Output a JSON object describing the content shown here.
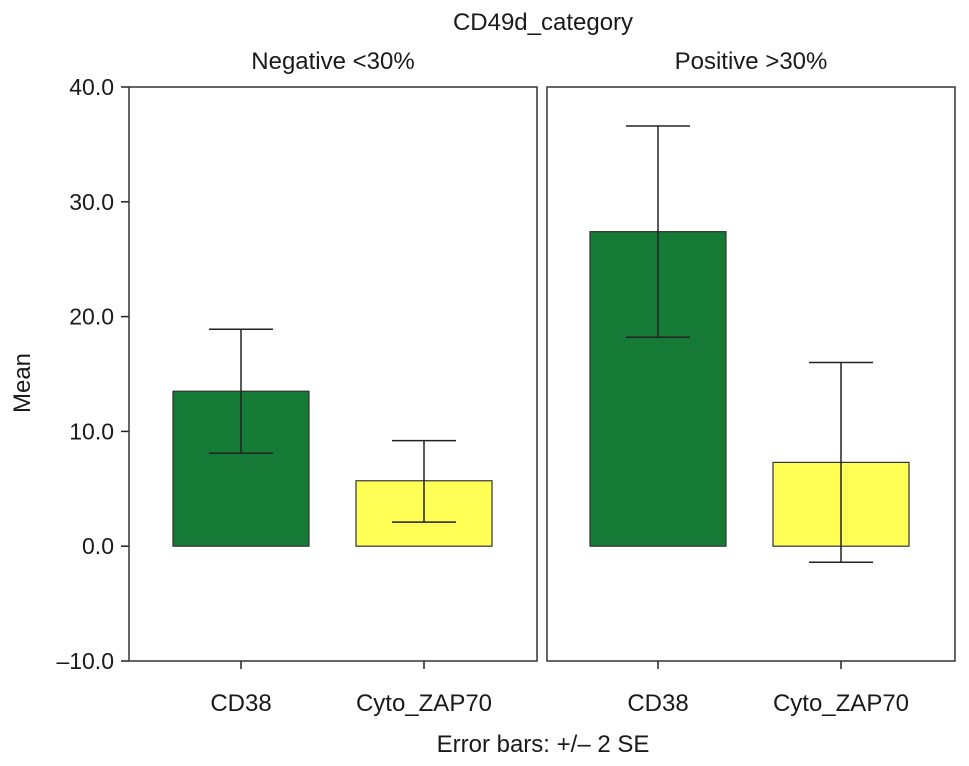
{
  "chart_data": {
    "type": "bar",
    "title": "CD49d_category",
    "ylabel": "Mean",
    "xlabel": "",
    "note": "Error bars: +/– 2 SE",
    "ylim": [
      -10,
      40
    ],
    "yticks": [
      -10,
      0,
      10,
      20,
      30,
      40
    ],
    "ytick_labels": [
      "–10.0",
      "0.0",
      "10.0",
      "20.0",
      "30.0",
      "40.0"
    ],
    "categories": [
      "CD38",
      "Cyto_ZAP70"
    ],
    "colors": {
      "CD38": "#147a35",
      "Cyto_ZAP70": "#ffff55"
    },
    "panels": [
      {
        "label": "Negative <30%",
        "bars": [
          {
            "category": "CD38",
            "value": 13.5,
            "err_low": 8.1,
            "err_high": 18.9
          },
          {
            "category": "Cyto_ZAP70",
            "value": 5.7,
            "err_low": 2.1,
            "err_high": 9.2
          }
        ]
      },
      {
        "label": "Positive >30%",
        "bars": [
          {
            "category": "CD38",
            "value": 27.4,
            "err_low": 18.2,
            "err_high": 36.6
          },
          {
            "category": "Cyto_ZAP70",
            "value": 7.3,
            "err_low": -1.4,
            "err_high": 16.0
          }
        ]
      }
    ]
  }
}
